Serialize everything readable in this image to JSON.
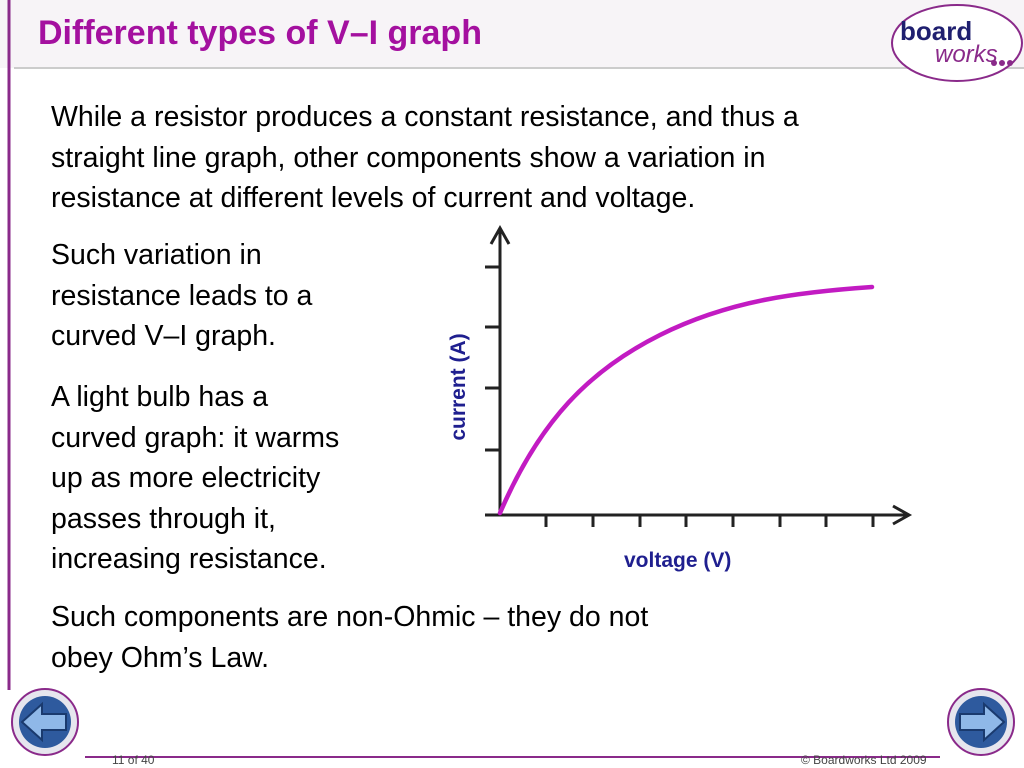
{
  "header": {
    "title": "Different types of V–I graph",
    "logo": {
      "top": "board",
      "bottom": "works"
    }
  },
  "body": {
    "intro": [
      "While a resistor produces a constant resistance, and thus a",
      "straight line graph, other components show a variation in",
      "resistance at different levels of current and voltage."
    ],
    "variation": [
      "Such variation in",
      "resistance leads to a",
      "curved V–I graph."
    ],
    "bulb": [
      "A light bulb has a",
      "curved graph: it warms",
      "up as more electricity",
      "passes through it,",
      "increasing resistance."
    ],
    "conclusion": [
      "Such components are non-Ohmic – they do not",
      "obey Ohm’s Law."
    ]
  },
  "graph": {
    "y_label": "current (A)",
    "x_label": "voltage (V)"
  },
  "footer": {
    "page": "11 of 40",
    "copyright": "© Boardworks Ltd 2009"
  }
}
